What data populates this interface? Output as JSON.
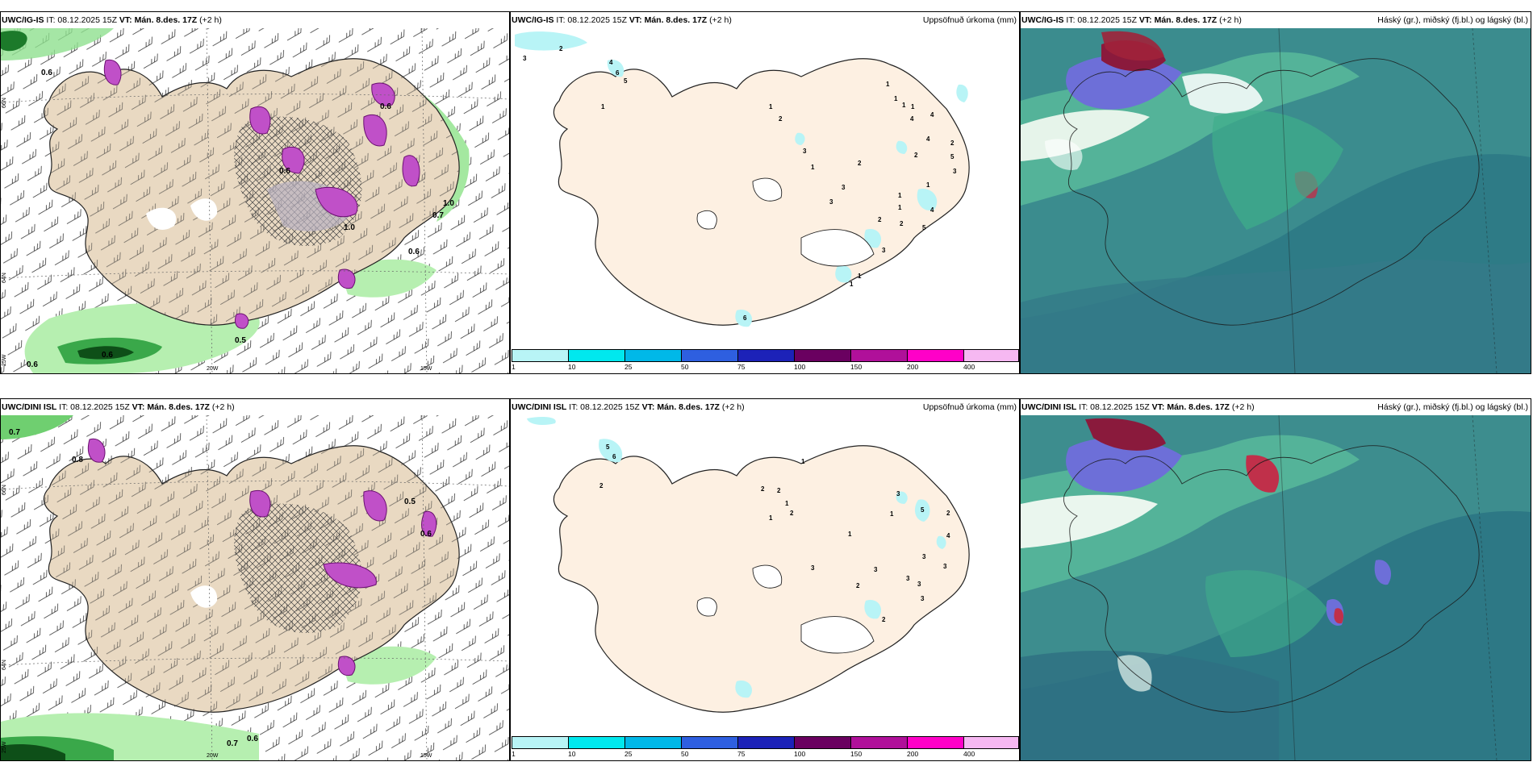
{
  "panels": {
    "p1": {
      "model": "UWC/IG-IS",
      "it": "IT: 08.12.2025 15Z",
      "vt_label": "VT:",
      "vt_value": "Mán. 8.des. 17Z",
      "lead": "(+2 h)",
      "right": ""
    },
    "p2": {
      "model": "UWC/IG-IS",
      "it": "IT: 08.12.2025 15Z",
      "vt_label": "VT:",
      "vt_value": "Mán. 8.des. 17Z",
      "lead": "(+2 h)",
      "right": "Uppsöfnuð úrkoma (mm)"
    },
    "p3": {
      "model": "UWC/IG-IS",
      "it": "IT: 08.12.2025 15Z",
      "vt_label": "VT:",
      "vt_value": "Mán. 8.des. 17Z",
      "lead": "(+2 h)",
      "right": "Háský (gr.), miðský (fj.bl.) og lágský (bl.)"
    },
    "p4": {
      "model": "UWC/DINI ISL",
      "it": "IT: 08.12.2025 15Z",
      "vt_label": "VT:",
      "vt_value": "Mán. 8.des. 17Z",
      "lead": "(+2 h)",
      "right": ""
    },
    "p5": {
      "model": "UWC/DINI ISL",
      "it": "IT: 08.12.2025 15Z",
      "vt_label": "VT:",
      "vt_value": "Mán. 8.des. 17Z",
      "lead": "(+2 h)",
      "right": "Uppsöfnuð úrkoma (mm)"
    },
    "p6": {
      "model": "UWC/DINI ISL",
      "it": "IT: 08.12.2025 15Z",
      "vt_label": "VT:",
      "vt_value": "Mán. 8.des. 17Z",
      "lead": "(+2 h)",
      "right": "Háský (gr.), miðský (fj.bl.) og lágský (bl.)"
    }
  },
  "axis_labels": {
    "lat66": "66N",
    "lat64": "64N",
    "lat63": "63N",
    "lon25": "25W",
    "lon20": "20W",
    "lon15": "15W"
  },
  "colorbar": {
    "ticks": [
      "1",
      "10",
      "25",
      "50",
      "75",
      "100",
      "150",
      "200",
      "400"
    ],
    "colors": [
      "#b8f4f6",
      "#00e8ee",
      "#00b8e8",
      "#2e5fe0",
      "#1c22b8",
      "#6a0060",
      "#b0109a",
      "#ff00c8",
      "#f6b8f2"
    ]
  },
  "labels": {
    "p1": [
      "0.6",
      "0.6",
      "0.6",
      "0.5",
      "0.6",
      "0.7",
      "1.0",
      "0.6",
      "1.0",
      "0.6"
    ],
    "p2": [
      "3",
      "2",
      "4",
      "6",
      "5",
      "1",
      "1",
      "2",
      "3",
      "1",
      "2",
      "3",
      "4",
      "2",
      "1",
      "3",
      "1",
      "1",
      "1",
      "1",
      "4",
      "4",
      "2",
      "5",
      "3",
      "2",
      "4",
      "5",
      "2",
      "3",
      "6",
      "1",
      "1",
      "1",
      "1"
    ],
    "p4": [
      "0.7",
      "0.8",
      "0.5",
      "0.7",
      "0.6",
      "0.6"
    ],
    "p5": [
      "5",
      "6",
      "2",
      "2",
      "2",
      "1",
      "1",
      "2",
      "1",
      "3",
      "5",
      "2",
      "1",
      "4",
      "1",
      "3",
      "3",
      "3",
      "3",
      "3",
      "2",
      "3",
      "3",
      "2"
    ]
  }
}
